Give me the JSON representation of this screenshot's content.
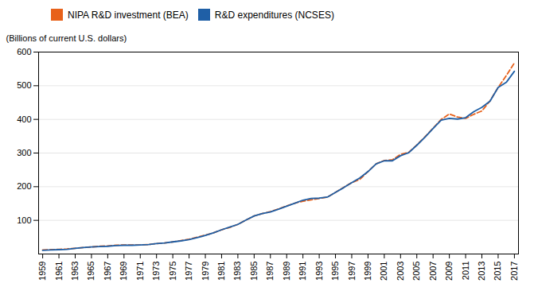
{
  "chart_data": {
    "type": "line",
    "ylabel": "(Billions of current U.S. dollars)",
    "x": [
      1959,
      1960,
      1961,
      1962,
      1963,
      1964,
      1965,
      1966,
      1967,
      1968,
      1969,
      1970,
      1971,
      1972,
      1973,
      1974,
      1975,
      1976,
      1977,
      1978,
      1979,
      1980,
      1981,
      1982,
      1983,
      1984,
      1985,
      1986,
      1987,
      1988,
      1989,
      1990,
      1991,
      1992,
      1993,
      1994,
      1995,
      1996,
      1997,
      1998,
      1999,
      2000,
      2001,
      2002,
      2003,
      2004,
      2005,
      2006,
      2007,
      2008,
      2009,
      2010,
      2011,
      2012,
      2013,
      2014,
      2015,
      2016,
      2017
    ],
    "series": [
      {
        "name": "NIPA R&D investment (BEA)",
        "color": "#E8611A",
        "line_style": "dashed",
        "values": [
          12,
          13,
          14,
          15,
          17,
          19,
          21,
          23,
          24,
          26,
          27,
          27,
          27,
          28,
          31,
          33,
          36,
          40,
          44,
          50,
          56,
          63,
          72,
          79,
          88,
          101,
          113,
          120,
          126,
          134,
          143,
          151,
          157,
          161,
          165,
          169,
          183,
          198,
          212,
          222,
          245,
          268,
          278,
          280,
          296,
          302,
          324,
          348,
          374,
          400,
          416,
          407,
          403,
          415,
          425,
          455,
          495,
          530,
          568
        ]
      },
      {
        "name": "R&D expenditures (NCSES)",
        "color": "#1F5FA6",
        "line_style": "solid",
        "values": [
          11,
          12,
          13,
          14,
          17,
          19,
          21,
          22,
          23,
          25,
          26,
          26,
          27,
          28,
          31,
          33,
          36,
          39,
          43,
          49,
          55,
          63,
          72,
          80,
          88,
          101,
          113,
          120,
          125,
          133,
          142,
          151,
          160,
          165,
          166,
          169,
          183,
          197,
          212,
          226,
          245,
          268,
          277,
          277,
          292,
          301,
          323,
          347,
          373,
          398,
          403,
          401,
          405,
          423,
          436,
          454,
          495,
          510,
          543
        ]
      }
    ],
    "xlim": [
      1958.5,
      2017.5
    ],
    "xticks": [
      1959,
      1961,
      1963,
      1965,
      1967,
      1969,
      1971,
      1973,
      1975,
      1977,
      1979,
      1981,
      1983,
      1985,
      1987,
      1989,
      1991,
      1993,
      1995,
      1997,
      1999,
      2001,
      2003,
      2005,
      2007,
      2009,
      2011,
      2013,
      2015,
      2017
    ],
    "ylim": [
      0,
      600
    ],
    "yticks": [
      100,
      200,
      300,
      400,
      500,
      600
    ],
    "grid": true
  }
}
